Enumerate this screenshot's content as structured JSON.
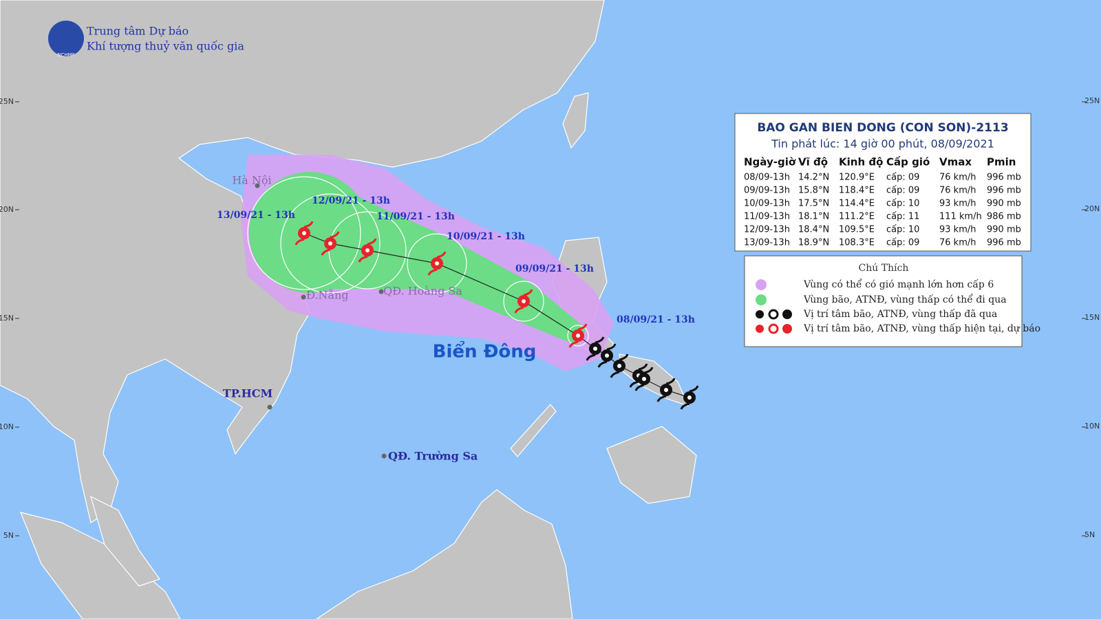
{
  "header": {
    "org_line1": "Trung tâm Dự báo",
    "org_line2": "Khí tượng thuỷ văn quốc gia",
    "logo_text": "NCHMF"
  },
  "lat_labels": [
    "25N",
    "20N",
    "15N",
    "10N",
    "5N"
  ],
  "places": [
    "Hà Nội",
    "Đ.Nẵng",
    "QĐ. Hoàng Sa",
    "TP.HCM",
    "QĐ. Trường Sa"
  ],
  "sea_label": "Biển Đông",
  "track_labels": [
    "08/09/21 - 13h",
    "09/09/21 - 13h",
    "10/09/21 - 13h",
    "11/09/21 - 13h",
    "12/09/21 - 13h",
    "13/09/21 - 13h"
  ],
  "table": {
    "title": "BAO GAN BIEN DONG (CON SON)-2113",
    "subtitle": "Tin phát lúc: 14 giờ 00 phút, 08/09/2021",
    "columns": [
      "Ngày-giờ",
      "Vĩ độ",
      "Kinh độ",
      "Cấp gió",
      "Vmax",
      "Pmin"
    ],
    "rows": [
      [
        "08/09-13h",
        "14.2°N",
        "120.9°E",
        "cấp: 09",
        "76 km/h",
        "996 mb"
      ],
      [
        "09/09-13h",
        "15.8°N",
        "118.4°E",
        "cấp: 09",
        "76 km/h",
        "996 mb"
      ],
      [
        "10/09-13h",
        "17.5°N",
        "114.4°E",
        "cấp: 10",
        "93 km/h",
        "990 mb"
      ],
      [
        "11/09-13h",
        "18.1°N",
        "111.2°E",
        "cấp: 11",
        "111 km/h",
        "986 mb"
      ],
      [
        "12/09-13h",
        "18.4°N",
        "109.5°E",
        "cấp: 10",
        "93 km/h",
        "990 mb"
      ],
      [
        "13/09-13h",
        "18.9°N",
        "108.3°E",
        "cấp: 09",
        "76 km/h",
        "996 mb"
      ]
    ]
  },
  "legend": {
    "title": "Chú Thích",
    "items": [
      "Vùng có thể có gió mạnh lớn hơn cấp 6",
      "Vùng bão, ATNĐ, vùng thấp có thể đi qua",
      "Vị trí tâm bão, ATNĐ, vùng thấp đã qua",
      "Vị trí tâm bão, ATNĐ, vùng thấp hiện tại, dự báo"
    ]
  }
}
